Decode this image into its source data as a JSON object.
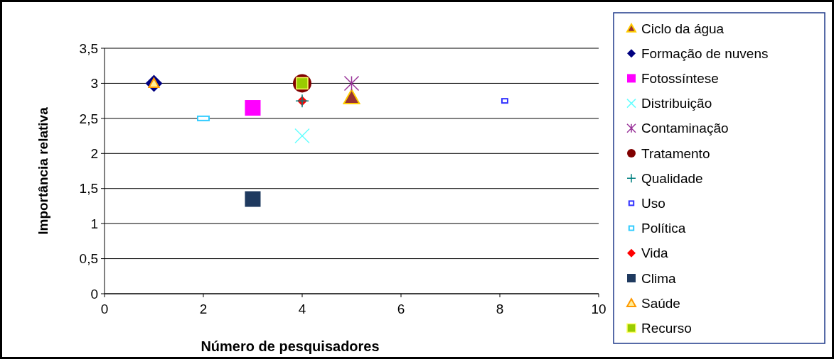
{
  "chart_data": {
    "type": "scatter",
    "xlabel": "Número de pesquisadores",
    "ylabel": "Importância relativa",
    "xlim": [
      0,
      10
    ],
    "xticks": [
      0,
      2,
      4,
      6,
      8,
      10
    ],
    "ylim": [
      0,
      3.5
    ],
    "yticks": [
      0,
      {
        "value": 0.5,
        "label": "0,5"
      },
      1,
      {
        "value": 1.5,
        "label": "1,5"
      },
      2,
      {
        "value": 2.5,
        "label": "2,5"
      },
      3,
      {
        "value": 3.5,
        "label": "3,5"
      }
    ],
    "grid": "y",
    "legend": "right",
    "series": [
      {
        "name": "Ciclo da água",
        "color": "#993333",
        "marker": "triangle",
        "x": [
          5
        ],
        "values": [
          2.8
        ]
      },
      {
        "name": "Formação de nuvens",
        "color": "#000080",
        "marker": "diamond",
        "x": [
          1
        ],
        "values": [
          3
        ]
      },
      {
        "name": "Fotossíntese",
        "color": "#ff00ff",
        "marker": "square",
        "x": [
          3
        ],
        "values": [
          2.65
        ]
      },
      {
        "name": "Distribuição",
        "color": "#66ffff",
        "marker": "x",
        "x": [
          4
        ],
        "values": [
          2.25
        ]
      },
      {
        "name": "Contaminação",
        "color": "#993399",
        "marker": "cross",
        "x": [
          5
        ],
        "values": [
          3
        ]
      },
      {
        "name": "Tratamento",
        "color": "#800000",
        "marker": "circle",
        "x": [
          4
        ],
        "values": [
          3
        ]
      },
      {
        "name": "Qualidade",
        "color": "#008080",
        "marker": "cross",
        "x": [
          4
        ],
        "values": [
          2.75
        ]
      },
      {
        "name": "Uso",
        "color": "#3333ff",
        "marker": "square",
        "x": [
          8.1
        ],
        "values": [
          2.75
        ]
      },
      {
        "name": "Política",
        "color": "#33ccff",
        "marker": "square",
        "x": [
          2
        ],
        "values": [
          2.5
        ]
      },
      {
        "name": "Vida",
        "color": "#ff0000",
        "marker": "diamond",
        "x": [
          4
        ],
        "values": [
          2.75
        ]
      },
      {
        "name": "Clima",
        "color": "#1f3a5f",
        "marker": "square",
        "x": [
          3
        ],
        "values": [
          1.35
        ]
      },
      {
        "name": "Saúde",
        "color": "#ff9900",
        "marker": "triangle",
        "x": [
          1
        ],
        "values": [
          3
        ]
      },
      {
        "name": "Recurso",
        "color": "#99cc00",
        "marker": "square",
        "x": [
          4
        ],
        "values": [
          3
        ]
      }
    ]
  }
}
